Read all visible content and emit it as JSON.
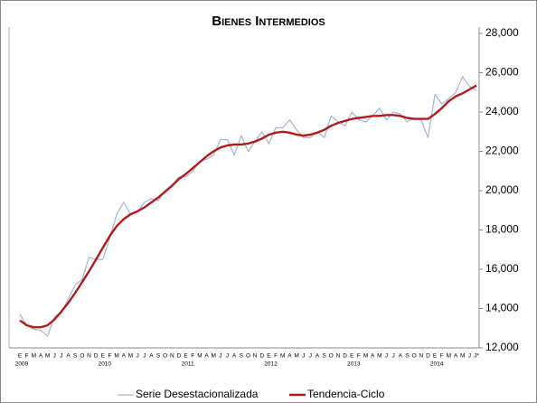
{
  "chart_data": {
    "type": "line",
    "title": "Bienes Intermedios",
    "categories": [
      "E",
      "F",
      "M",
      "A",
      "M",
      "J",
      "J",
      "A",
      "S",
      "O",
      "N",
      "D",
      "E",
      "F",
      "M",
      "A",
      "M",
      "J",
      "J",
      "A",
      "S",
      "O",
      "N",
      "D",
      "E",
      "F",
      "M",
      "A",
      "M",
      "J",
      "J",
      "A",
      "S",
      "O",
      "N",
      "D",
      "E",
      "F",
      "M",
      "A",
      "M",
      "J",
      "J",
      "A",
      "S",
      "O",
      "N",
      "D",
      "E",
      "F",
      "M",
      "A",
      "M",
      "J",
      "J",
      "A",
      "S",
      "O",
      "N",
      "D",
      "E",
      "F",
      "M",
      "A",
      "M",
      "J",
      "J*"
    ],
    "x_groups": [
      "2009",
      "2010",
      "2011",
      "2012",
      "2013",
      "2014"
    ],
    "series": [
      {
        "name": "Serie Desestacionalizada",
        "color": "#9fb6d3",
        "width": 1.2,
        "values": [
          13700,
          13150,
          12950,
          12900,
          12600,
          13600,
          13800,
          14500,
          15200,
          15500,
          16600,
          16500,
          16500,
          17600,
          18800,
          19400,
          18800,
          18900,
          19400,
          19600,
          19500,
          20000,
          20300,
          20700,
          20700,
          21000,
          21500,
          21600,
          21800,
          22600,
          22600,
          21800,
          22800,
          22000,
          22500,
          23000,
          22400,
          23200,
          23200,
          23600,
          23100,
          22700,
          22700,
          23000,
          22700,
          23800,
          23500,
          23300,
          24000,
          23600,
          23500,
          23800,
          24200,
          23600,
          24000,
          23900,
          23500,
          23700,
          23600,
          22700,
          24900,
          24400,
          24700,
          25000,
          25800,
          25300,
          25100
        ]
      },
      {
        "name": "Tendencia-Ciclo",
        "color": "#b01c1c",
        "width": 2.4,
        "values": [
          13400,
          13150,
          13050,
          13050,
          13150,
          13450,
          13850,
          14300,
          14800,
          15350,
          15900,
          16500,
          17100,
          17700,
          18200,
          18550,
          18800,
          18950,
          19150,
          19400,
          19650,
          19950,
          20250,
          20600,
          20850,
          21150,
          21450,
          21750,
          22000,
          22200,
          22300,
          22350,
          22350,
          22400,
          22500,
          22650,
          22850,
          22950,
          23000,
          22950,
          22850,
          22800,
          22850,
          22950,
          23100,
          23300,
          23450,
          23550,
          23650,
          23700,
          23750,
          23800,
          23800,
          23850,
          23850,
          23800,
          23700,
          23650,
          23650,
          23650,
          23900,
          24200,
          24550,
          24800,
          24950,
          25150,
          25350
        ]
      }
    ],
    "ylim": [
      12000,
      28000
    ],
    "yticks": [
      {
        "value": 12000,
        "label": "12,000"
      },
      {
        "value": 14000,
        "label": "14,000"
      },
      {
        "value": 16000,
        "label": "16,000"
      },
      {
        "value": 18000,
        "label": "18,000"
      },
      {
        "value": 20000,
        "label": "20,000"
      },
      {
        "value": 22000,
        "label": "22,000"
      },
      {
        "value": 24000,
        "label": "24,000"
      },
      {
        "value": 26000,
        "label": "26,000"
      },
      {
        "value": 28000,
        "label": "28,000"
      }
    ]
  }
}
